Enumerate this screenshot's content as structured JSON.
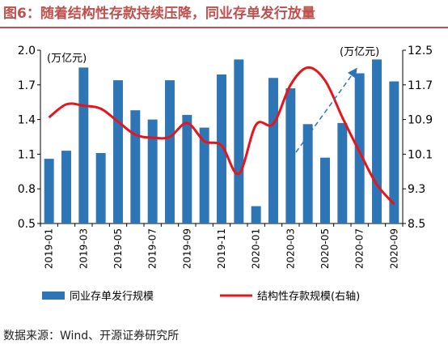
{
  "title": "图6：随着结构性存款持续压降，同业存单发行放量",
  "source": "数据来源：Wind、开源证券研究所",
  "chart_data": {
    "type": "bar+line",
    "categories": [
      "2019-01",
      "2019-02",
      "2019-03",
      "2019-04",
      "2019-05",
      "2019-06",
      "2019-07",
      "2019-08",
      "2019-09",
      "2019-10",
      "2019-11",
      "2019-12",
      "2020-01",
      "2020-02",
      "2020-03",
      "2020-04",
      "2020-05",
      "2020-06",
      "2020-07",
      "2020-08",
      "2020-09"
    ],
    "x_tick_labels": [
      "2019-01",
      "2019-03",
      "2019-05",
      "2019-07",
      "2019-09",
      "2019-11",
      "2020-01",
      "2020-03",
      "2020-05",
      "2020-07",
      "2020-09"
    ],
    "left_unit": "(万亿元)",
    "right_unit": "(万亿元)",
    "left_ylim": [
      0.5,
      2.0
    ],
    "left_ticks": [
      "0.5",
      "0.8",
      "1.1",
      "1.4",
      "1.7",
      "2.0"
    ],
    "right_ylim": [
      8.5,
      12.5
    ],
    "right_ticks": [
      "8.5",
      "9.3",
      "10.1",
      "10.9",
      "11.7",
      "12.5"
    ],
    "series": [
      {
        "name": "同业存单发行规模",
        "type": "bar",
        "axis": "left",
        "color": "#2E75B6",
        "values": [
          1.06,
          1.13,
          1.85,
          1.11,
          1.74,
          1.48,
          1.4,
          1.74,
          1.44,
          1.33,
          1.79,
          1.92,
          0.65,
          1.76,
          1.67,
          1.36,
          1.07,
          1.37,
          1.8,
          1.92,
          1.73
        ]
      },
      {
        "name": "结构性存款规模(右轴)",
        "type": "line",
        "axis": "right",
        "color": "#E8141B",
        "values": [
          10.95,
          11.25,
          11.22,
          11.15,
          10.85,
          10.55,
          10.48,
          10.5,
          10.82,
          10.4,
          10.3,
          9.65,
          10.78,
          10.8,
          11.7,
          12.1,
          11.8,
          10.95,
          10.15,
          9.4,
          8.95
        ]
      }
    ],
    "grid": false,
    "legend": "bottom"
  }
}
